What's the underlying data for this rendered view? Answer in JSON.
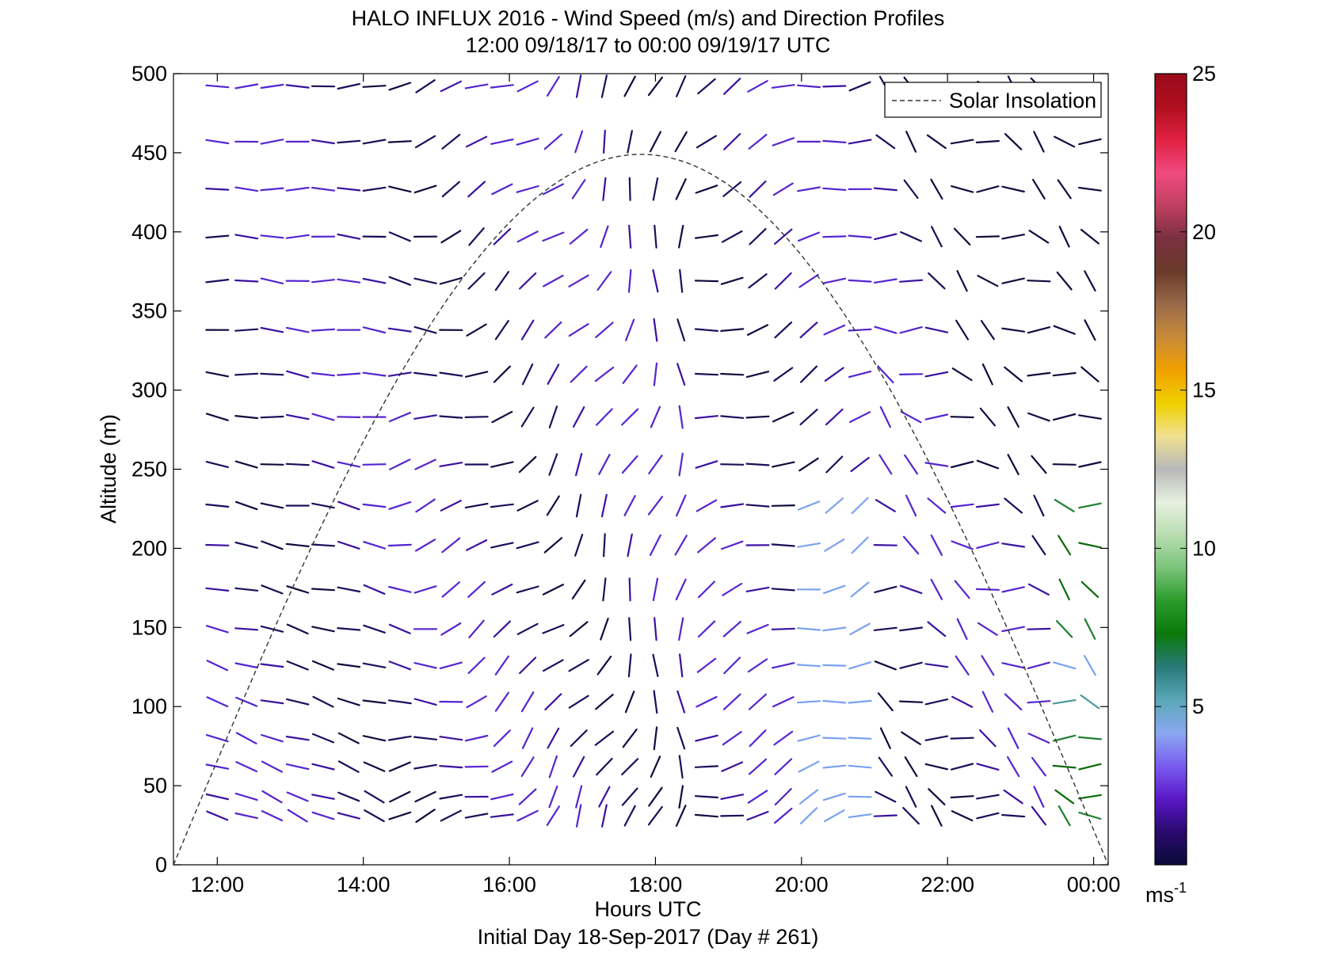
{
  "chart_data": {
    "type": "wind-barb-profile",
    "title": "HALO INFLUX 2016 - Wind Speed (m/s) and Direction Profiles",
    "subtitle": "12:00 09/18/17 to 00:00 09/19/17  UTC",
    "xlabel": "Hours UTC",
    "footer": "Initial Day 18-Sep-2017 (Day # 261)",
    "ylabel": "Altitude (m)",
    "xlim_hours": [
      11.4,
      24.2
    ],
    "ylim": [
      0,
      500
    ],
    "x_ticks": [
      {
        "value": 12,
        "label": "12:00"
      },
      {
        "value": 14,
        "label": "14:00"
      },
      {
        "value": 16,
        "label": "16:00"
      },
      {
        "value": 18,
        "label": "18:00"
      },
      {
        "value": 20,
        "label": "20:00"
      },
      {
        "value": 22,
        "label": "22:00"
      },
      {
        "value": 24,
        "label": "00:00"
      }
    ],
    "y_ticks": [
      0,
      50,
      100,
      150,
      200,
      250,
      300,
      350,
      400,
      450,
      500
    ],
    "legend": {
      "entries": [
        "Solar Insolation"
      ],
      "placement": "top-right",
      "line_style": "dashed"
    },
    "solar_insolation": {
      "start_hour": 11.4,
      "peak_hour": 17.8,
      "peak_value": 449,
      "end_hour": 24.2
    },
    "colorbar": {
      "range": [
        0,
        25
      ],
      "ticks": [
        5,
        10,
        15,
        20,
        25
      ],
      "unit_label": "ms",
      "unit_exponent": "-1",
      "colors": [
        "#0b0b3a",
        "#2a0a6e",
        "#5a18c8",
        "#7a5cf0",
        "#8aa8f0",
        "#5aa8b8",
        "#2a7a7a",
        "#0a7a0a",
        "#2a9a2a",
        "#7ac47a",
        "#b8dcb0",
        "#e6f0e0",
        "#b8b8b8",
        "#f0e090",
        "#f0d000",
        "#f0a000",
        "#c88a3a",
        "#9a6a4a",
        "#6a3a2a",
        "#7a3040",
        "#c04060",
        "#f04a80",
        "#e02040",
        "#b01020",
        "#9a0a1a"
      ]
    },
    "barb_times_hours": [
      12,
      12.4,
      12.75,
      13.1,
      13.45,
      13.8,
      14.15,
      14.5,
      14.85,
      15.2,
      15.55,
      15.9,
      16.25,
      16.6,
      16.95,
      17.3,
      17.65,
      18.0,
      18.35,
      18.7,
      19.05,
      19.4,
      19.75,
      20.1,
      20.45,
      20.8,
      21.15,
      21.5,
      21.85,
      22.2,
      22.55,
      22.9,
      23.25,
      23.6,
      23.95
    ],
    "barb_altitudes_m": [
      31,
      43,
      62,
      80,
      103,
      126,
      149,
      174,
      202,
      227,
      253,
      283,
      310,
      338,
      369,
      397,
      427,
      457,
      492
    ],
    "barb_encoding": "line segment at each time/altitude; orientation = wind direction, color = wind speed (colorbar)"
  }
}
